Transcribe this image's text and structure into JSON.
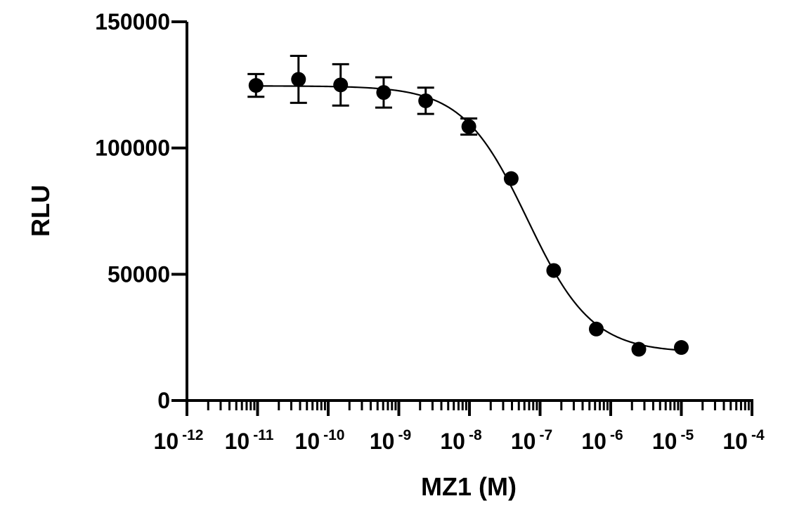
{
  "chart_data": {
    "type": "scatter",
    "xlabel": "MZ1 (M)",
    "ylabel": "RLU",
    "x_scale": "log10",
    "xlim": [
      1e-12,
      0.0001
    ],
    "ylim": [
      0,
      150000
    ],
    "x_ticks": [
      {
        "base": "10",
        "exp": "-12",
        "value": 1e-12
      },
      {
        "base": "10",
        "exp": "-11",
        "value": 1e-11
      },
      {
        "base": "10",
        "exp": "-10",
        "value": 1e-10
      },
      {
        "base": "10",
        "exp": "-9",
        "value": 1e-09
      },
      {
        "base": "10",
        "exp": "-8",
        "value": 1e-08
      },
      {
        "base": "10",
        "exp": "-7",
        "value": 1e-07
      },
      {
        "base": "10",
        "exp": "-6",
        "value": 1e-06
      },
      {
        "base": "10",
        "exp": "-5",
        "value": 1e-05
      },
      {
        "base": "10",
        "exp": "-4",
        "value": 0.0001
      }
    ],
    "y_ticks": [
      {
        "label": "0",
        "value": 0
      },
      {
        "label": "50000",
        "value": 50000
      },
      {
        "label": "100000",
        "value": 100000
      },
      {
        "label": "150000",
        "value": 150000
      }
    ],
    "grid": false,
    "legend": "none",
    "points": [
      {
        "x": 9.5e-12,
        "y": 124800,
        "err": 4500
      },
      {
        "x": 3.8e-11,
        "y": 127200,
        "err": 9300
      },
      {
        "x": 1.5e-10,
        "y": 125000,
        "err": 8200
      },
      {
        "x": 6.1e-10,
        "y": 122000,
        "err": 6000
      },
      {
        "x": 2.4e-09,
        "y": 118700,
        "err": 5200
      },
      {
        "x": 9.8e-09,
        "y": 108500,
        "err": 3200
      },
      {
        "x": 3.9e-08,
        "y": 87900,
        "err": 0
      },
      {
        "x": 1.56e-07,
        "y": 51500,
        "err": 0
      },
      {
        "x": 6.25e-07,
        "y": 28300,
        "err": 0
      },
      {
        "x": 2.5e-06,
        "y": 20300,
        "err": 0
      },
      {
        "x": 1e-05,
        "y": 21000,
        "err": 0
      }
    ],
    "fit": {
      "model": "four-parameter logistic",
      "top": 124600,
      "bottom": 19000,
      "logEC50": -7.18,
      "hill": -0.95
    },
    "colors": {
      "marker": "#000000",
      "axis": "#000000",
      "curve": "#000000"
    }
  }
}
